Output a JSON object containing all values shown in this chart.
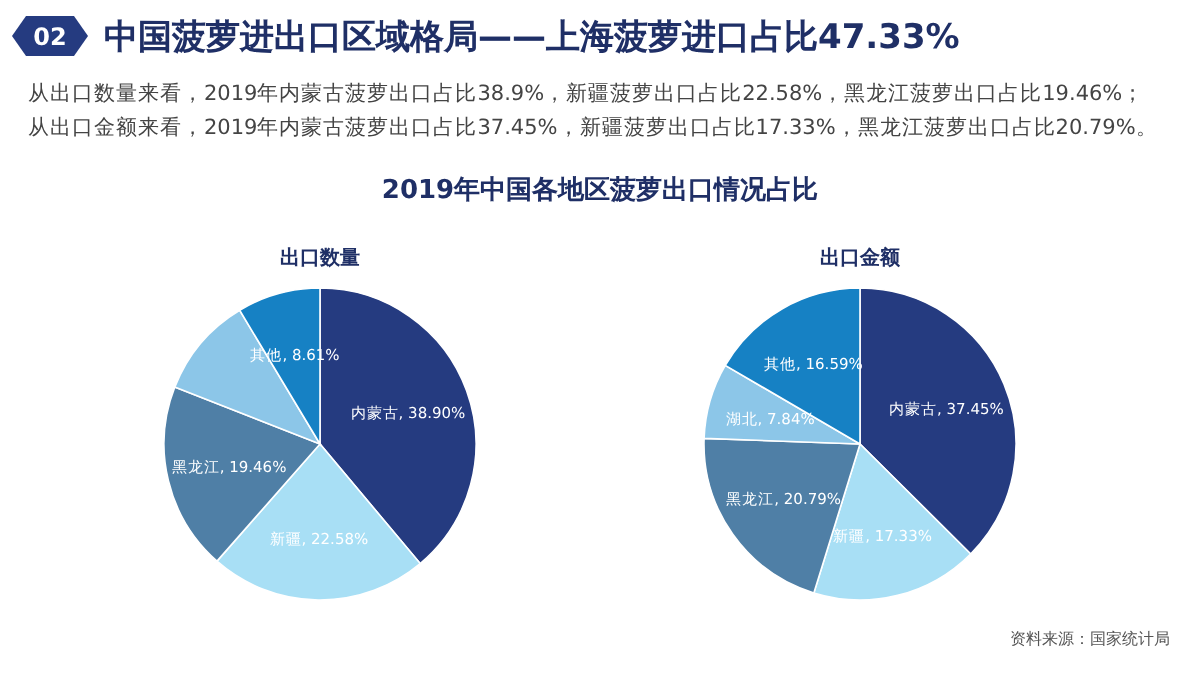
{
  "chart_data": [
    {
      "type": "other",
      "title": "中国菠萝进出口区域格局——上海菠萝进口占比47.33%",
      "subtitle": "2019年中国各地区菠萝出口情况占比",
      "annotations": [
        "02",
        "从出口数量来看，2019年内蒙古菠萝出口占比38.9%，新疆菠萝出口占比22.58%，黑龙江菠萝出口占比19.46%；",
        "从出口金额来看，2019年内蒙古菠萝出口占比37.45%，新疆菠萝出口占比17.33%，黑龙江菠萝出口占比20.79%。",
        "资料来源：国家统计局"
      ]
    },
    {
      "type": "pie",
      "title": "出口数量",
      "categories": [
        "内蒙古",
        "新疆",
        "黑龙江",
        null,
        "其他"
      ],
      "values": [
        38.9,
        22.58,
        19.46,
        10.45,
        8.61
      ],
      "value_labels": [
        "38.90%",
        "22.58%",
        "19.46%",
        null,
        "8.61%"
      ],
      "colors": [
        "#253b80",
        "#a8dff5",
        "#4f7fa6",
        "#8cc6e8",
        "#1681c4"
      ]
    },
    {
      "type": "pie",
      "title": "出口金额",
      "categories": [
        "内蒙古",
        "新疆",
        "黑龙江",
        "湖北",
        "其他"
      ],
      "values": [
        37.45,
        17.33,
        20.79,
        7.84,
        16.59
      ],
      "value_labels": [
        "37.45%",
        "17.33%",
        "20.79%",
        "7.84%",
        "16.59%"
      ],
      "colors": [
        "#253b80",
        "#a8dff5",
        "#4f7fa6",
        "#8cc6e8",
        "#1681c4"
      ]
    }
  ]
}
